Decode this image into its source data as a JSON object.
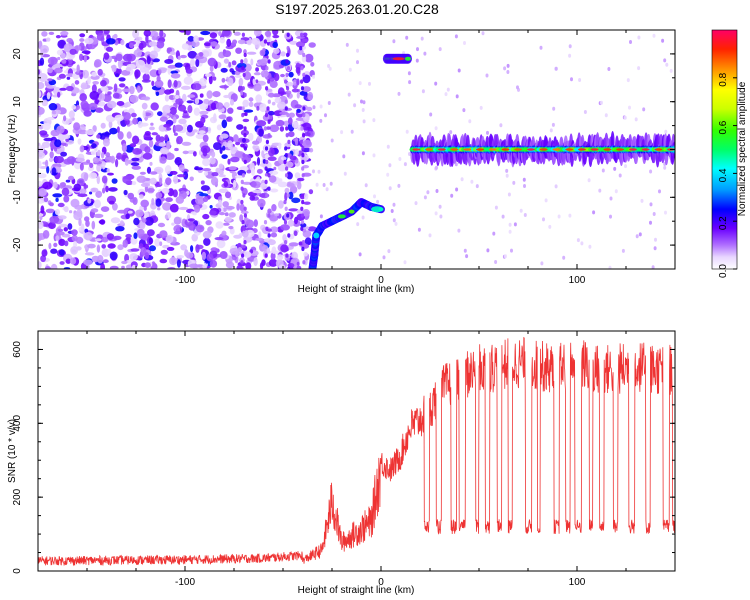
{
  "title": "S197.2025.263.01.20.C28",
  "chart_data": [
    {
      "type": "heatmap",
      "xlabel": "Height of straight line (km)",
      "ylabel": "Frequency (Hz)",
      "xlim": [
        -175,
        150
      ],
      "ylim": [
        -25,
        25
      ],
      "xticks": [
        -100,
        0,
        100
      ],
      "yticks": [
        -20,
        -10,
        0,
        10,
        20
      ],
      "colorbar": {
        "label": "Normalized spectral amplitude",
        "range": [
          0,
          1
        ],
        "ticks": [
          0.0,
          0.2,
          0.4,
          0.6,
          0.8
        ],
        "tick_labels": [
          "0.0",
          "0.2",
          "0.4",
          "0.6",
          "0.8"
        ],
        "colormap": [
          "#ffffff",
          "#e0c8ff",
          "#9a40ff",
          "#5a00e6",
          "#0000ff",
          "#0099ff",
          "#00ffff",
          "#00ff66",
          "#66ff00",
          "#ffff00",
          "#ff9900",
          "#ff0000",
          "#ff0066"
        ]
      },
      "features": [
        {
          "name": "noise",
          "x_range": [
            -175,
            -35
          ],
          "f_range": [
            -25,
            25
          ]
        },
        {
          "name": "rising-track",
          "points": [
            [
              -35,
              -25
            ],
            [
              -34,
              -22
            ],
            [
              -33,
              -18
            ],
            [
              -30,
              -16
            ],
            [
              -25,
              -15
            ],
            [
              -20,
              -14
            ],
            [
              -15,
              -13
            ],
            [
              -10,
              -11
            ],
            [
              -5,
              -12
            ],
            [
              0,
              -12.5
            ]
          ]
        },
        {
          "name": "upper-tone",
          "x_range": [
            3,
            14
          ],
          "f": 19
        },
        {
          "name": "carrier-line",
          "x_range": [
            16,
            150
          ],
          "f": 0
        }
      ]
    },
    {
      "type": "line",
      "xlabel": "Height of straight line (km)",
      "ylabel": "SNR (10 * v/v)",
      "xlim": [
        -175,
        150
      ],
      "ylim": [
        0,
        650
      ],
      "xticks": [
        -100,
        0,
        100
      ],
      "yticks": [
        0,
        200,
        400,
        600
      ],
      "color": "#ee3333",
      "series": [
        {
          "values_description_x": [
            -175,
            -100,
            -60,
            -40,
            -30,
            -25,
            -20,
            -10,
            -5,
            0,
            5,
            10,
            15,
            20,
            25,
            30,
            40,
            50,
            60,
            70,
            80,
            90,
            100,
            110,
            120,
            130,
            140,
            150
          ],
          "y": [
            15,
            18,
            22,
            30,
            60,
            200,
            80,
            120,
            140,
            300,
            280,
            320,
            400,
            420,
            450,
            500,
            540,
            560,
            570,
            580,
            570,
            560,
            580,
            560,
            560,
            570,
            560,
            560
          ]
        }
      ]
    }
  ]
}
